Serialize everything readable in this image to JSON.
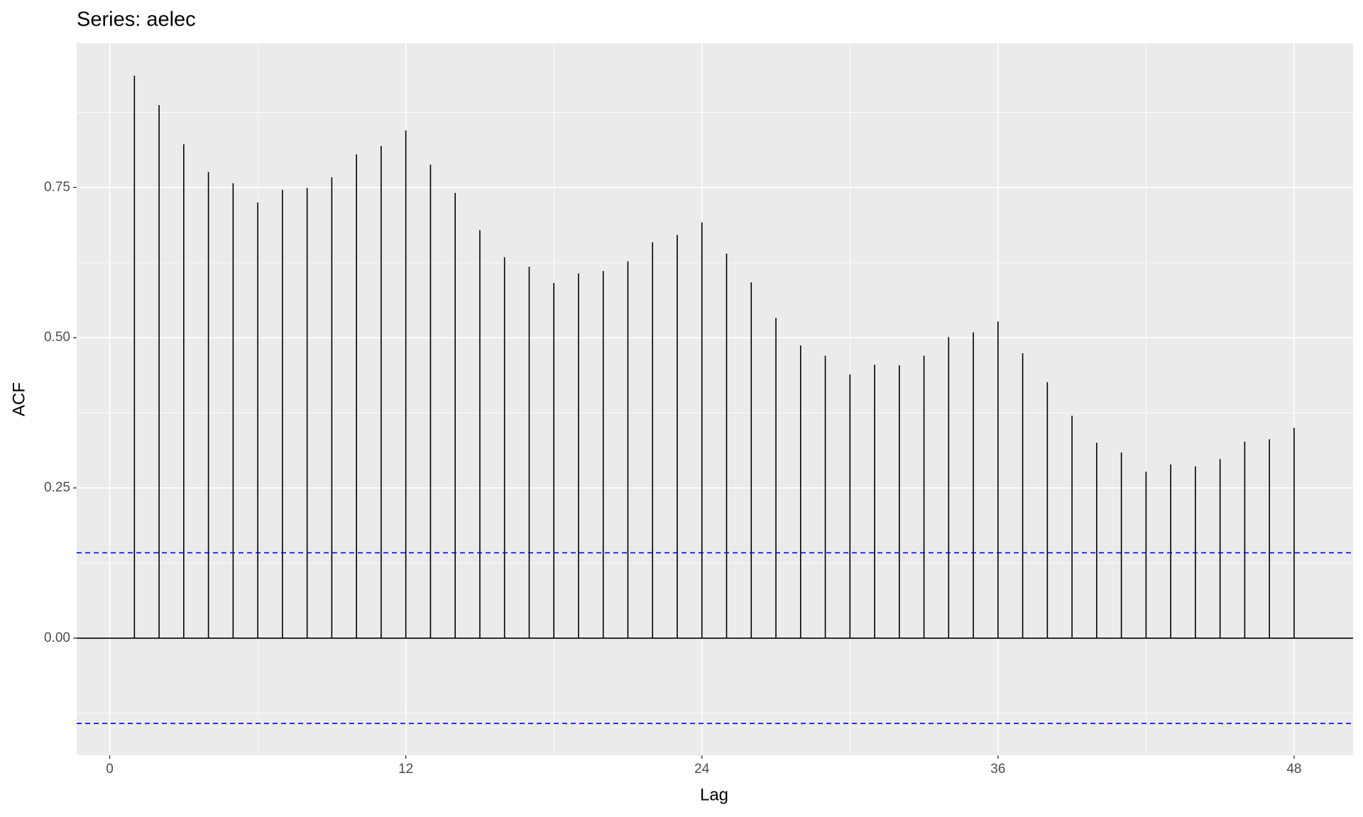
{
  "chart_data": {
    "type": "acf",
    "title": "Series: aelec",
    "x_label": "Lag",
    "y_label": "ACF",
    "x": [
      1,
      2,
      3,
      4,
      5,
      6,
      7,
      8,
      9,
      10,
      11,
      12,
      13,
      14,
      15,
      16,
      17,
      18,
      19,
      20,
      21,
      22,
      23,
      24,
      25,
      26,
      27,
      28,
      29,
      30,
      31,
      32,
      33,
      34,
      35,
      36,
      37,
      38,
      39,
      40,
      41,
      42,
      43,
      44,
      45,
      46,
      47,
      48
    ],
    "values": [
      0.936,
      0.887,
      0.822,
      0.776,
      0.757,
      0.725,
      0.746,
      0.749,
      0.767,
      0.805,
      0.819,
      0.845,
      0.788,
      0.741,
      0.679,
      0.634,
      0.618,
      0.591,
      0.607,
      0.611,
      0.627,
      0.659,
      0.671,
      0.692,
      0.64,
      0.592,
      0.533,
      0.487,
      0.47,
      0.439,
      0.455,
      0.454,
      0.47,
      0.501,
      0.509,
      0.527,
      0.474,
      0.426,
      0.37,
      0.325,
      0.309,
      0.277,
      0.289,
      0.286,
      0.298,
      0.327,
      0.331,
      0.35
    ],
    "color": "#000000",
    "confidence_limits": [
      0.142,
      -0.142
    ],
    "confidence_color": "#0000ff",
    "xlim": [
      -1.34,
      50.39
    ],
    "xticks": [
      0,
      12,
      24,
      36,
      48
    ],
    "ylim": [
      -0.195,
      0.99
    ],
    "yticks": [
      {
        "value": 0,
        "label": "0.00"
      },
      {
        "value": 0.25,
        "label": "0.25"
      },
      {
        "value": 0.5,
        "label": "0.50"
      },
      {
        "value": 0.75,
        "label": "0.75"
      }
    ],
    "grid": true
  }
}
